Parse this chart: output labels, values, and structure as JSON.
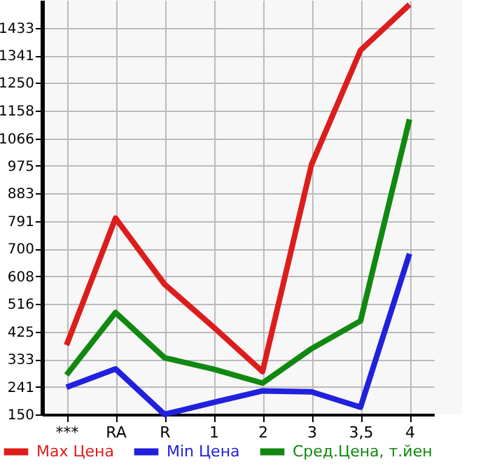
{
  "chart_data": {
    "type": "line",
    "categories": [
      "***",
      "RA",
      "R",
      "1",
      "2",
      "3",
      "3,5",
      "4"
    ],
    "series": [
      {
        "name": "Max Цена",
        "color": "#dd1c1c",
        "values": [
          380,
          801,
          582,
          440,
          292,
          979,
          1358,
          1510
        ]
      },
      {
        "name": "Min Цена",
        "color": "#2020dd",
        "values": [
          240,
          301,
          150,
          190,
          228,
          225,
          174,
          683
        ]
      },
      {
        "name": "Сред.Цена, т.йен",
        "color": "#118811",
        "values": [
          281,
          488,
          338,
          300,
          254,
          368,
          460,
          1129
        ]
      }
    ],
    "ylim": [
      150,
      1525
    ],
    "yticks": [
      150,
      241,
      333,
      425,
      516,
      608,
      700,
      791,
      883,
      975,
      1066,
      1158,
      1250,
      1341,
      1433
    ],
    "grid": true,
    "legend": "bottom",
    "marker": "none",
    "line_style": "solid"
  }
}
